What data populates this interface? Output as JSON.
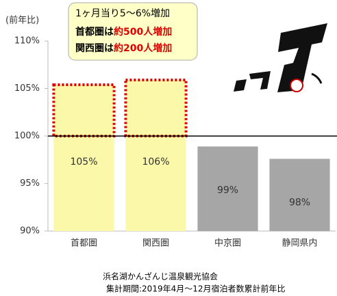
{
  "chart_data": {
    "type": "bar",
    "y_axis_label": "(前年比)",
    "categories": [
      "首都圏",
      "関西圏",
      "中京圏",
      "静岡県内"
    ],
    "values": [
      105.4,
      105.9,
      98.9,
      97.6
    ],
    "value_labels": [
      "105%",
      "106%",
      "99%",
      "98%"
    ],
    "colors": [
      "#fbf8a9",
      "#fbf8a9",
      "#a6a6a6",
      "#a6a6a6"
    ],
    "highlight_color": "#e00000",
    "reference_line": 100,
    "ylim": [
      90,
      110
    ],
    "yticks": [
      {
        "value": 90,
        "label": "90%"
      },
      {
        "value": 95,
        "label": "95%"
      },
      {
        "value": 100,
        "label": "100%"
      },
      {
        "value": 105,
        "label": "105%"
      },
      {
        "value": 110,
        "label": "110%"
      }
    ],
    "annotation": {
      "line1": "1ヶ月当り5～6%増加",
      "line2": [
        "首都圏は",
        "約500人増加"
      ],
      "line3": [
        "関西圏は",
        "約200人増加"
      ]
    },
    "footer": [
      "浜名湖かんざんじ温泉観光協会",
      "集計期間:2019年4月～12月宿泊者数累計前年比"
    ]
  }
}
